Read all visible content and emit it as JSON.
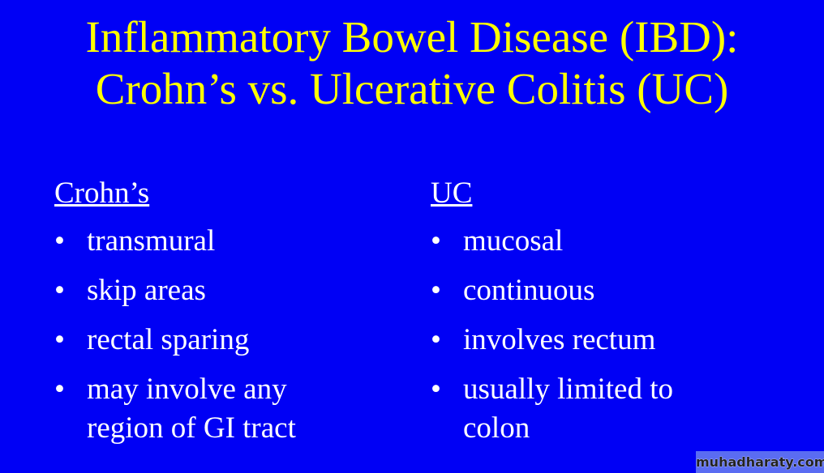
{
  "slide": {
    "title_lines": [
      "Inflammatory Bowel Disease (IBD):",
      "Crohn’s vs. Ulcerative Colitis (UC)"
    ],
    "bullet_glyph": "•",
    "columns": [
      {
        "heading": "Crohn’s",
        "items": [
          "transmural",
          "skip areas",
          "rectal sparing",
          "may involve any region of GI tract"
        ]
      },
      {
        "heading": "UC",
        "items": [
          "mucosal",
          "continuous",
          "involves rectum",
          "usually limited to colon"
        ]
      }
    ],
    "colors": {
      "background": "#0000f5",
      "title": "#ffff00",
      "text": "#ffffff"
    }
  },
  "watermark": "muhadharaty.com"
}
